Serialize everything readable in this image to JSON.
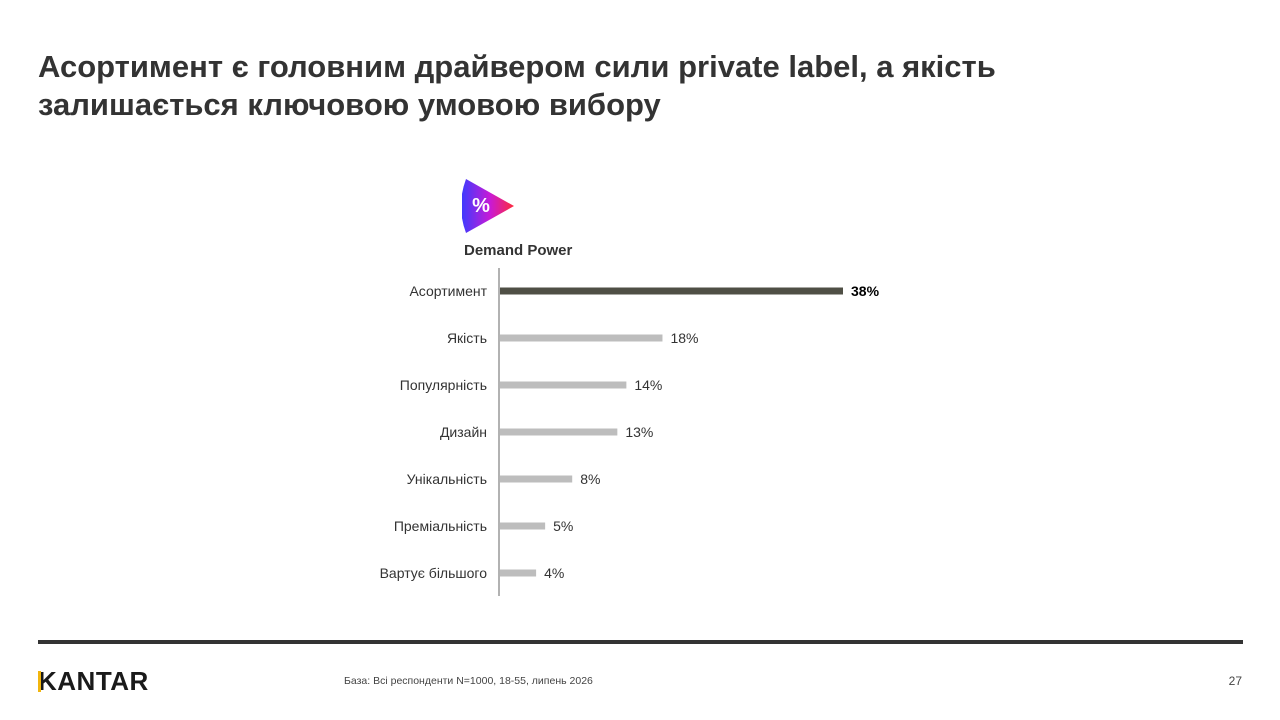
{
  "slide": {
    "title": "Асортимент є головним драйвером сили private label, а якість залишається ключовою умовою вибору",
    "base_note": "База: Всі респонденти N=1000, 18-55, липень 2026",
    "page_number": "27",
    "logo_text": "KANTAR"
  },
  "icon": {
    "name": "percent-triangle-icon",
    "glyph": "%",
    "gradient": [
      "#3b3bff",
      "#c81ad6",
      "#ff2a3a"
    ]
  },
  "colors": {
    "highlight_bar": "#4f4f45",
    "bar": "#bdbdbd",
    "axis": "#666666",
    "text": "#333333"
  },
  "chart_data": {
    "type": "bar",
    "orientation": "horizontal",
    "title": "Demand Power",
    "categories": [
      "Асортимент",
      "Якість",
      "Популярність",
      "Дизайн",
      "Унікальність",
      "Преміальність",
      "Вартує більшого"
    ],
    "values": [
      38,
      18,
      14,
      13,
      8,
      5,
      4
    ],
    "value_labels": [
      "38%",
      "18%",
      "14%",
      "13%",
      "8%",
      "5%",
      "4%"
    ],
    "highlight_index": 0,
    "unit": "%",
    "xlim": [
      0,
      40
    ],
    "grid": false,
    "legend": "none"
  }
}
